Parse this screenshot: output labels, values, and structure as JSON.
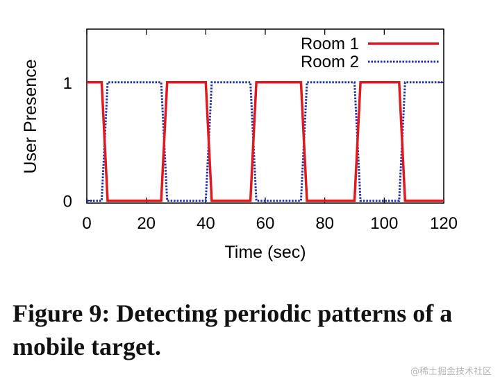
{
  "chart_data": {
    "type": "line",
    "xlabel": "Time (sec)",
    "ylabel": "User Presence",
    "xlim": [
      0,
      120
    ],
    "ylim": [
      -0.02,
      1.45
    ],
    "xticks": [
      "0",
      "20",
      "40",
      "60",
      "80",
      "100",
      "120"
    ],
    "yticks": [
      "0",
      "1"
    ],
    "grid": false,
    "legend_position": "top-right",
    "series": [
      {
        "name": "Room 1",
        "color": "#e0191f",
        "style": "solid",
        "x": [
          0,
          5,
          7,
          25,
          27,
          40,
          42,
          55,
          57,
          72,
          74,
          90,
          92,
          105,
          107,
          120
        ],
        "y": [
          1,
          1,
          0,
          0,
          1,
          1,
          0,
          0,
          1,
          1,
          0,
          0,
          1,
          1,
          0,
          0
        ]
      },
      {
        "name": "Room 2",
        "color": "#1f2fb4",
        "style": "dotted",
        "x": [
          0,
          5,
          7,
          25,
          27,
          40,
          42,
          55,
          57,
          72,
          74,
          90,
          92,
          105,
          107,
          120
        ],
        "y": [
          0,
          0,
          1,
          1,
          0,
          0,
          1,
          1,
          0,
          0,
          1,
          1,
          0,
          0,
          1,
          1
        ]
      }
    ]
  },
  "caption": "Figure 9:  Detecting periodic patterns of a mobile target.",
  "watermark": "@稀土掘金技术社区"
}
